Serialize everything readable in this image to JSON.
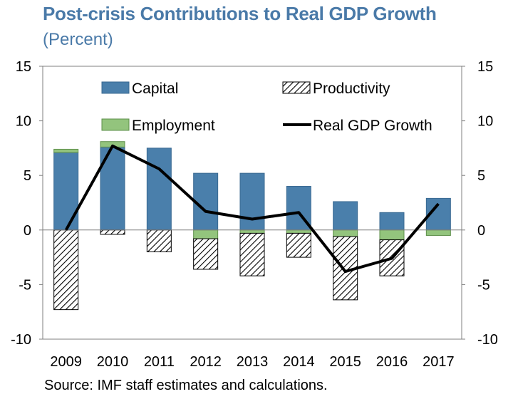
{
  "header": {
    "title": "Post-crisis Contributions to Real GDP Growth",
    "subtitle": "(Percent)"
  },
  "footer": {
    "source": "Source: IMF staff estimates and calculations."
  },
  "colors": {
    "capital": "#4a7fab",
    "employment": "#93c47d",
    "productivity_hatch": "#000000",
    "gdp_line": "#000000"
  },
  "chart_data": {
    "type": "bar",
    "stacked": true,
    "title": "Post-crisis Contributions to Real GDP Growth",
    "subtitle": "(Percent)",
    "categories": [
      "2009",
      "2010",
      "2011",
      "2012",
      "2013",
      "2014",
      "2015",
      "2016",
      "2017"
    ],
    "ylim": [
      -10,
      15
    ],
    "yticks": [
      -10,
      -5,
      0,
      5,
      10,
      15
    ],
    "ytick_labels": [
      "-10",
      "-5",
      "0",
      "5",
      "10",
      "15"
    ],
    "secondary_ylim": [
      -10,
      15
    ],
    "grid": false,
    "legend_position": "top",
    "series": [
      {
        "name": "Capital",
        "type": "bar",
        "values": [
          7.1,
          7.6,
          7.5,
          5.2,
          5.2,
          4.0,
          2.6,
          1.6,
          2.9
        ]
      },
      {
        "name": "Employment",
        "type": "bar",
        "values": [
          0.3,
          0.5,
          0.0,
          -0.8,
          -0.3,
          -0.3,
          -0.6,
          -0.9,
          -0.5
        ]
      },
      {
        "name": "Productivity",
        "type": "bar",
        "values": [
          -7.3,
          -0.4,
          -2.0,
          -2.8,
          -3.9,
          -2.2,
          -5.8,
          -3.3,
          0.0
        ]
      },
      {
        "name": "Real GDP Growth",
        "type": "line",
        "values": [
          0.0,
          7.7,
          5.6,
          1.7,
          1.0,
          1.6,
          -3.8,
          -2.6,
          2.4
        ]
      }
    ]
  }
}
